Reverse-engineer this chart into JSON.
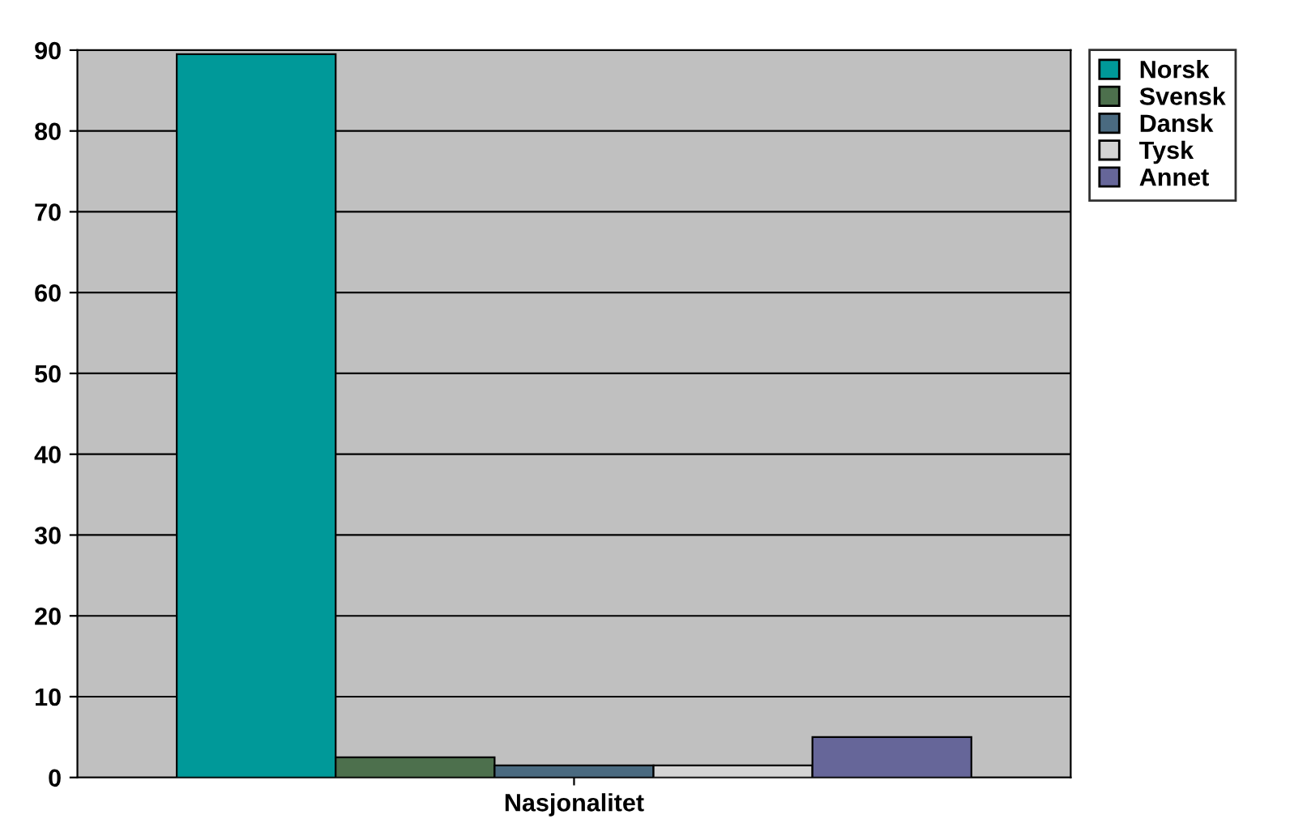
{
  "chart_data": {
    "type": "bar",
    "categories": [
      "Nasjonalitet"
    ],
    "series": [
      {
        "name": "Norsk",
        "color": "#009999",
        "values": [
          89.5
        ]
      },
      {
        "name": "Svensk",
        "color": "#4d704d",
        "values": [
          2.5
        ]
      },
      {
        "name": "Dansk",
        "color": "#4a6a80",
        "values": [
          1.5
        ]
      },
      {
        "name": "Tysk",
        "color": "#d4d4d4",
        "values": [
          1.5
        ]
      },
      {
        "name": "Annet",
        "color": "#666699",
        "values": [
          5
        ]
      }
    ],
    "ylim": [
      0,
      90
    ],
    "yticks": [
      0,
      10,
      20,
      30,
      40,
      50,
      60,
      70,
      80,
      90
    ],
    "grid": "y",
    "legend": "top right"
  }
}
